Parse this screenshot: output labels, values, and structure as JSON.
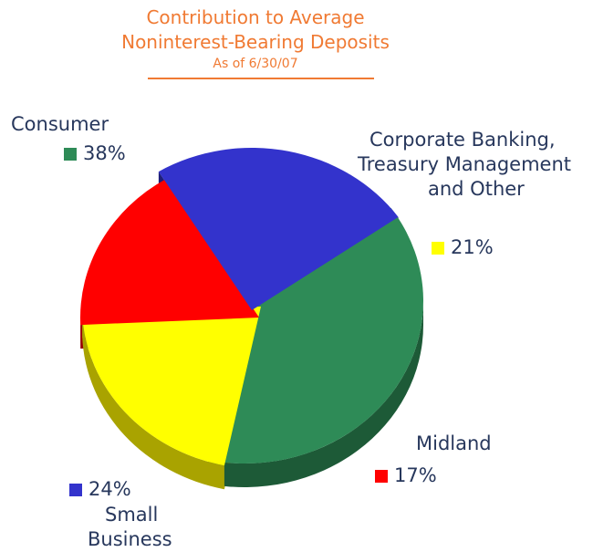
{
  "chart_data": {
    "type": "pie",
    "title_line1": "Contribution to Average",
    "title_line2": "Noninterest-Bearing Deposits",
    "subtitle": "As of 6/30/07",
    "slices": [
      {
        "label": "Consumer",
        "value": 38,
        "value_label": "38%",
        "color": "#2e8b57",
        "side_color": "#1d5a37"
      },
      {
        "label_lines": [
          "Corporate Banking,",
          "Treasury Management",
          "and Other"
        ],
        "value": 21,
        "value_label": "21%",
        "color": "#ffff00",
        "side_color": "#a9a300"
      },
      {
        "label": "Midland",
        "value": 17,
        "value_label": "17%",
        "color": "#ff0000",
        "side_color": "#9a0000"
      },
      {
        "label_lines": [
          "Small",
          "Business"
        ],
        "value": 24,
        "value_label": "24%",
        "color": "#3333cc",
        "side_color": "#1e1e7a"
      }
    ]
  }
}
